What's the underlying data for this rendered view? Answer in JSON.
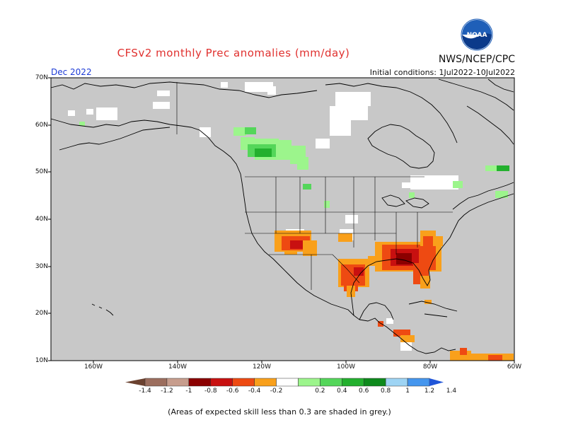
{
  "header": {
    "title": "CFSv2 monthly Prec anomalies (mm/day)",
    "agency": "NWS/NCEP/CPC",
    "valid_month": "Dec 2022",
    "initial_conditions": "Initial conditions: 1Jul2022-10Jul2022",
    "logo_text": "NOAA"
  },
  "axes": {
    "lat_labels": [
      "70N",
      "60N",
      "50N",
      "40N",
      "30N",
      "20N",
      "10N"
    ],
    "lon_labels": [
      "160W",
      "140W",
      "120W",
      "100W",
      "80W",
      "60W"
    ]
  },
  "colorbar": {
    "labels": [
      "-1.4",
      "-1.2",
      "-1",
      "-0.8",
      "-0.6",
      "-0.4",
      "-0.2",
      "0.2",
      "0.4",
      "0.6",
      "0.8",
      "1",
      "1.2",
      "1.4"
    ],
    "colors": [
      "#6b4230",
      "#9c6e5e",
      "#c79d8d",
      "#8b0000",
      "#c81010",
      "#ee4a12",
      "#f9a01b",
      "#ffffff",
      "#9cf58c",
      "#54d65a",
      "#23b02e",
      "#0e8a1c",
      "#9ed4f4",
      "#4596ee",
      "#2156d8"
    ]
  },
  "footer": {
    "note": "(Areas of expected skill less than 0.3 are shaded in grey.)"
  },
  "map": {
    "background_color": "#c8c8c8",
    "land_outline_color": "#000000"
  }
}
